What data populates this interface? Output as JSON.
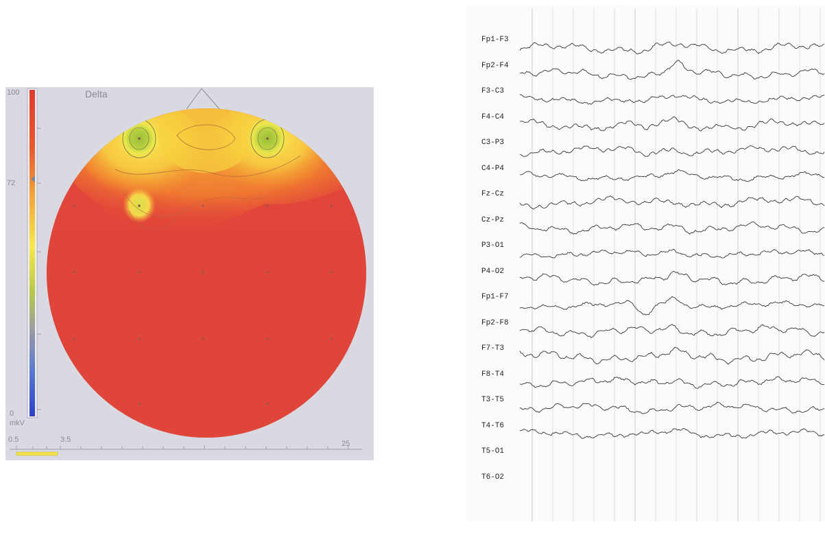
{
  "topomap": {
    "band_title": "Delta",
    "scale_max": "100",
    "scale_marker": "72",
    "scale_min": "0",
    "scale_unit": "mkV",
    "freq_start": "0.5",
    "freq_band_end": "3.5",
    "freq_end": "25",
    "colors": {
      "background": "#d9d9e2",
      "head_red": "#e2463a",
      "hot_yellow": "#f6e84a",
      "peak_green": "#a8c83c",
      "orange": "#f39a2e"
    }
  },
  "eeg": {
    "channels": [
      "Fp1-F3",
      "Fp2-F4",
      "F3-C3",
      "F4-C4",
      "C3-P3",
      "C4-P4",
      "Fz-Cz",
      "Cz-Pz",
      "P3-O1",
      "P4-O2",
      "Fp1-F7",
      "Fp2-F8",
      "F7-T3",
      "F8-T4",
      "T3-T5",
      "T4-T6",
      "T5-O1",
      "T6-O2"
    ],
    "trace_color": "#333333",
    "grid_color": "#cfcfcf"
  }
}
